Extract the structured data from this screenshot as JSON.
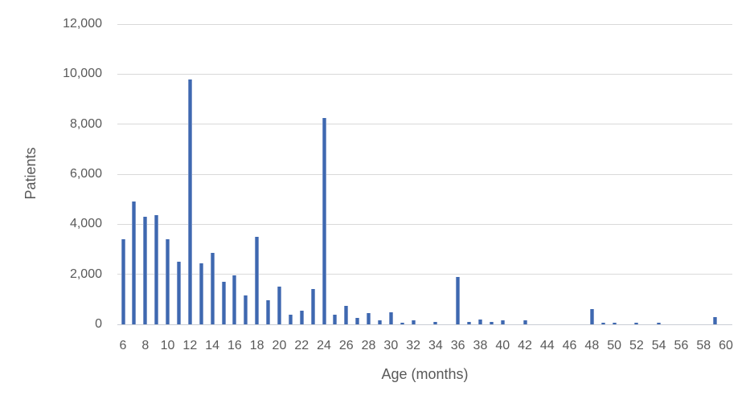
{
  "chart_data": {
    "type": "bar",
    "title": "",
    "xlabel": "Age (months)",
    "ylabel": "Patients",
    "x_unit": "months",
    "x": [
      6,
      7,
      8,
      9,
      10,
      11,
      12,
      13,
      14,
      15,
      16,
      17,
      18,
      19,
      20,
      21,
      22,
      23,
      24,
      25,
      26,
      27,
      28,
      29,
      30,
      31,
      32,
      33,
      34,
      35,
      36,
      37,
      38,
      39,
      40,
      41,
      42,
      43,
      44,
      45,
      46,
      47,
      48,
      49,
      50,
      51,
      52,
      53,
      54,
      55,
      56,
      57,
      58,
      59,
      60
    ],
    "values": [
      3400,
      4900,
      4300,
      4350,
      3400,
      2500,
      9800,
      2450,
      2850,
      1700,
      1950,
      1150,
      3500,
      950,
      1500,
      400,
      550,
      1400,
      8250,
      400,
      750,
      250,
      450,
      150,
      470,
      80,
      150,
      0,
      100,
      0,
      1900,
      100,
      180,
      100,
      150,
      0,
      150,
      0,
      0,
      0,
      0,
      0,
      620,
      80,
      80,
      0,
      80,
      0,
      80,
      0,
      0,
      0,
      0,
      300,
      0
    ],
    "xlim": [
      5,
      61
    ],
    "ylim": [
      0,
      12000
    ],
    "ytick_interval": 2000,
    "ytick_values": [
      0,
      2000,
      4000,
      6000,
      8000,
      10000,
      12000
    ],
    "ytick_labels": [
      "0",
      "2,000",
      "4,000",
      "6,000",
      "8,000",
      "10,000",
      "12,000"
    ],
    "xtick_values": [
      6,
      8,
      10,
      12,
      14,
      16,
      18,
      20,
      22,
      24,
      26,
      28,
      30,
      32,
      34,
      36,
      38,
      40,
      42,
      44,
      46,
      48,
      50,
      52,
      54,
      56,
      58,
      60
    ],
    "xtick_labels": [
      "6",
      "8",
      "10",
      "12",
      "14",
      "16",
      "18",
      "20",
      "22",
      "24",
      "26",
      "28",
      "30",
      "32",
      "34",
      "36",
      "38",
      "40",
      "42",
      "44",
      "46",
      "48",
      "50",
      "52",
      "54",
      "56",
      "58",
      "60"
    ],
    "grid": "horizontal",
    "legend": "none",
    "bar_color": "#3e68b0",
    "gridline_color": "#d9d9d9",
    "text_color": "#595959"
  }
}
